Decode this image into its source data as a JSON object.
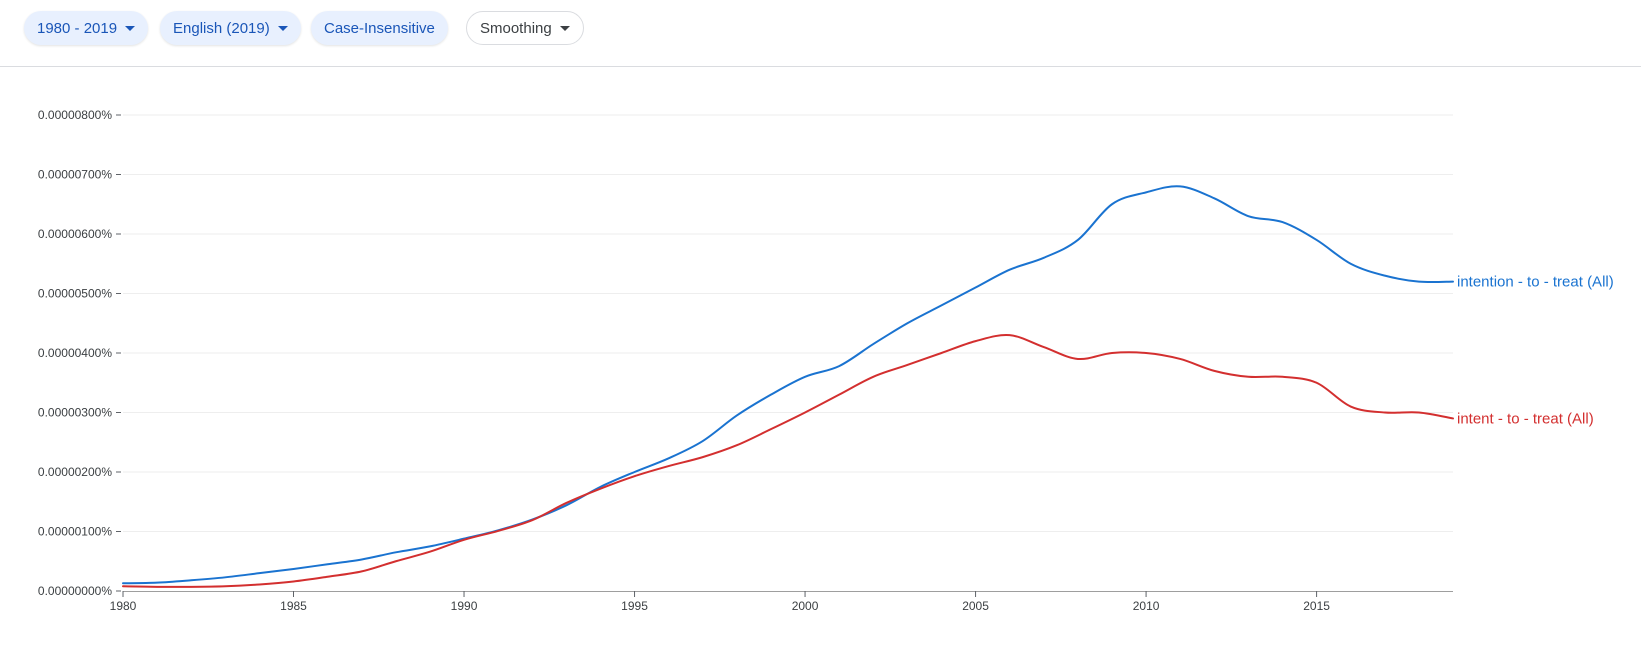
{
  "toolbar": {
    "year_range": "1980 - 2019",
    "corpus": "English (2019)",
    "case": "Case-Insensitive",
    "smoothing": "Smoothing"
  },
  "colors": {
    "accent": "#1a56b8",
    "chip_bg": "#e8f0fe",
    "series_1": "#1a73d0",
    "series_2": "#d32f2f",
    "grid": "#eeeeee",
    "axis": "#9e9e9e"
  },
  "chart_data": {
    "type": "line",
    "xlim": [
      1980,
      2019
    ],
    "ylim": [
      0,
      8e-06
    ],
    "x_ticks": [
      1980,
      1985,
      1990,
      1995,
      2000,
      2005,
      2010,
      2015
    ],
    "y_ticks": [
      {
        "value": 0,
        "label": "0.00000000%"
      },
      {
        "value": 1e-06,
        "label": "0.00000100%"
      },
      {
        "value": 2e-06,
        "label": "0.00000200%"
      },
      {
        "value": 3e-06,
        "label": "0.00000300%"
      },
      {
        "value": 4e-06,
        "label": "0.00000400%"
      },
      {
        "value": 5e-06,
        "label": "0.00000500%"
      },
      {
        "value": 6e-06,
        "label": "0.00000600%"
      },
      {
        "value": 7e-06,
        "label": "0.00000700%"
      },
      {
        "value": 8e-06,
        "label": "0.00000800%"
      }
    ],
    "grid": true,
    "legend": "inline-right",
    "x": [
      1980,
      1981,
      1982,
      1983,
      1984,
      1985,
      1986,
      1987,
      1988,
      1989,
      1990,
      1991,
      1992,
      1993,
      1994,
      1995,
      1996,
      1997,
      1998,
      1999,
      2000,
      2001,
      2002,
      2003,
      2004,
      2005,
      2006,
      2007,
      2008,
      2009,
      2010,
      2011,
      2012,
      2013,
      2014,
      2015,
      2016,
      2017,
      2018,
      2019
    ],
    "series": [
      {
        "name": "intention - to - treat (All)",
        "color": "#1a73d0",
        "values": [
          1.3e-07,
          1.4e-07,
          1.8e-07,
          2.3e-07,
          3e-07,
          3.7e-07,
          4.5e-07,
          5.3e-07,
          6.5e-07,
          7.5e-07,
          8.8e-07,
          1.02e-06,
          1.2e-06,
          1.44e-06,
          1.75e-06,
          2e-06,
          2.23e-06,
          2.52e-06,
          2.95e-06,
          3.3e-06,
          3.6e-06,
          3.78e-06,
          4.15e-06,
          4.5e-06,
          4.8e-06,
          5.1e-06,
          5.4e-06,
          5.6e-06,
          5.9e-06,
          6.5e-06,
          6.7e-06,
          6.8e-06,
          6.6e-06,
          6.3e-06,
          6.2e-06,
          5.9e-06,
          5.5e-06,
          5.3e-06,
          5.2e-06,
          5.2e-06
        ]
      },
      {
        "name": "intent - to - treat (All)",
        "color": "#d32f2f",
        "values": [
          8e-08,
          7e-08,
          7e-08,
          8e-08,
          1.1e-07,
          1.6e-07,
          2.4e-07,
          3.3e-07,
          5e-07,
          6.6e-07,
          8.6e-07,
          1.01e-06,
          1.19e-06,
          1.48e-06,
          1.72e-06,
          1.93e-06,
          2.1e-06,
          2.25e-06,
          2.45e-06,
          2.72e-06,
          3e-06,
          3.3e-06,
          3.6e-06,
          3.8e-06,
          4e-06,
          4.2e-06,
          4.3e-06,
          4.1e-06,
          3.9e-06,
          4e-06,
          4e-06,
          3.9e-06,
          3.7e-06,
          3.6e-06,
          3.6e-06,
          3.5e-06,
          3.1e-06,
          3e-06,
          3e-06,
          2.9e-06
        ]
      }
    ]
  }
}
